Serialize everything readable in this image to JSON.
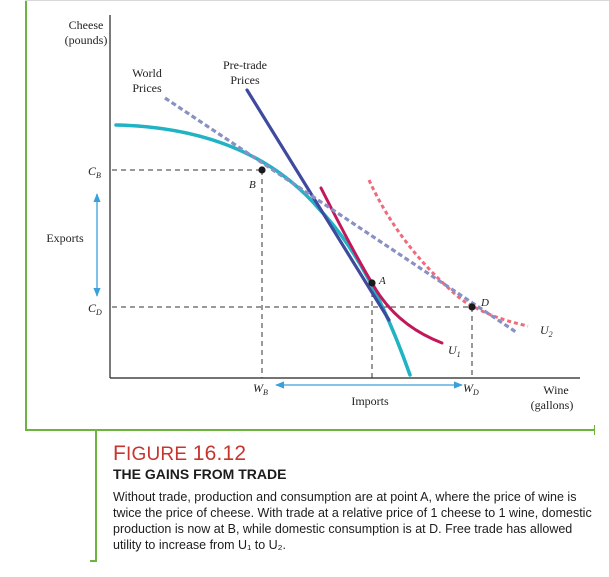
{
  "axes": {
    "y_label_line1": "Cheese",
    "y_label_line2": "(pounds)",
    "x_label_line1": "Wine",
    "x_label_line2": "(gallons)"
  },
  "labels": {
    "world_prices_line1": "World",
    "world_prices_line2": "Prices",
    "pretrade_prices_line1": "Pre-trade",
    "pretrade_prices_line2": "Prices",
    "exports": "Exports",
    "imports": "Imports",
    "point_a": "A",
    "point_b": "B",
    "point_d": "D",
    "cb_main": "C",
    "cb_sub": "B",
    "cd_main": "C",
    "cd_sub": "D",
    "wb_main": "W",
    "wb_sub": "B",
    "wd_main": "W",
    "wd_sub": "D",
    "u1_main": "U",
    "u1_sub": "1",
    "u2_main": "U",
    "u2_sub": "2"
  },
  "caption": {
    "figure_word_initial": "F",
    "figure_word_rest": "IGURE",
    "figure_number": "16.12",
    "title": "THE GAINS FROM TRADE",
    "text": "Without trade, production and consumption are at point A, where the price of wine is twice the price of cheese. With trade at a relative price of 1 cheese to 1 wine, domestic production is now at B, while domestic consumption is at D. Free trade has allowed utility to increase from U₁ to U₂."
  },
  "colors": {
    "ppf": "#1fb3c4",
    "pretrade_line": "#3f4a9e",
    "world_line": "#8890c4",
    "u1": "#c2185b",
    "u2": "#f06a7a",
    "trade_arrows": "#3aa0dc",
    "frame": "#6db33f"
  }
}
